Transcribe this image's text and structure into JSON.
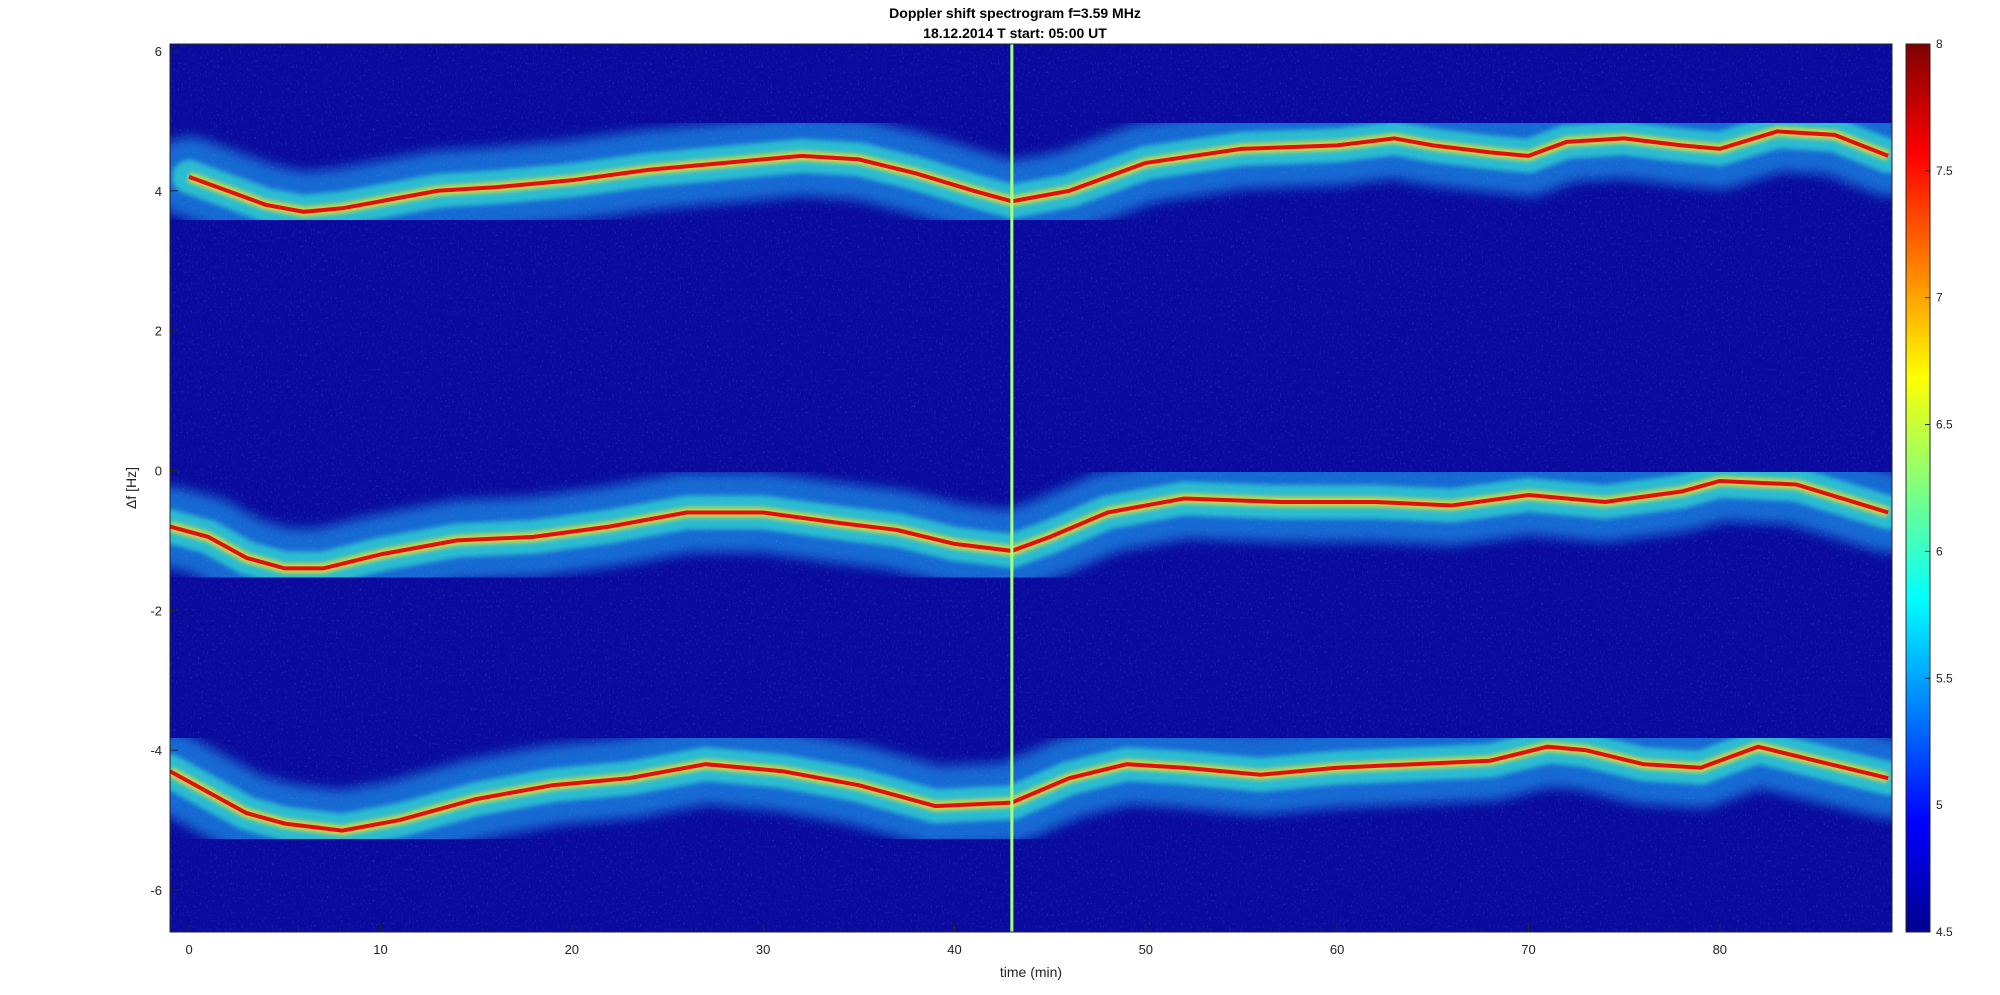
{
  "chart_data": {
    "type": "heatmap",
    "title": "Doppler shift spectrogram f=3.59 MHz",
    "subtitle": "18.12.2014   T start: 05:00 UT",
    "xlabel": "time (min)",
    "ylabel": "Δf [Hz]",
    "xlim": [
      -1,
      89
    ],
    "ylim": [
      -6.6,
      6.1
    ],
    "x_ticks": [
      0,
      10,
      20,
      30,
      40,
      50,
      60,
      70,
      80
    ],
    "y_ticks": [
      -6,
      -4,
      -2,
      0,
      2,
      4,
      6
    ],
    "colorbar": {
      "range": [
        4.5,
        8
      ],
      "ticks": [
        4.5,
        5,
        5.5,
        6,
        6.5,
        7,
        7.5,
        8
      ],
      "colormap": "jet"
    },
    "background_color": "#0a0a9c",
    "traces": [
      {
        "x": [
          0,
          2,
          4,
          6,
          8,
          10,
          13,
          16,
          20,
          24,
          28,
          32,
          35,
          38,
          41,
          43,
          46,
          50,
          55,
          60,
          63,
          65,
          68,
          70,
          72,
          75,
          78,
          80,
          83,
          86,
          88.8
        ],
        "y": [
          4.2,
          4.0,
          3.8,
          3.7,
          3.75,
          3.85,
          4.0,
          4.05,
          4.15,
          4.3,
          4.4,
          4.5,
          4.45,
          4.25,
          4.0,
          3.85,
          4.0,
          4.4,
          4.6,
          4.65,
          4.75,
          4.65,
          4.55,
          4.5,
          4.7,
          4.75,
          4.65,
          4.6,
          4.85,
          4.8,
          4.5
        ]
      },
      {
        "x": [
          -1,
          1,
          3,
          5,
          7,
          10,
          14,
          18,
          22,
          26,
          30,
          34,
          37,
          40,
          43,
          45,
          48,
          52,
          57,
          62,
          66,
          70,
          74,
          78,
          80,
          84,
          88.8
        ],
        "y": [
          -0.8,
          -0.95,
          -1.25,
          -1.4,
          -1.4,
          -1.2,
          -1.0,
          -0.95,
          -0.8,
          -0.6,
          -0.6,
          -0.75,
          -0.85,
          -1.05,
          -1.15,
          -0.95,
          -0.6,
          -0.4,
          -0.45,
          -0.45,
          -0.5,
          -0.35,
          -0.45,
          -0.3,
          -0.15,
          -0.2,
          -0.6
        ]
      },
      {
        "x": [
          -1,
          1,
          3,
          5,
          8,
          11,
          15,
          19,
          23,
          27,
          31,
          35,
          39,
          43,
          46,
          49,
          52,
          56,
          60,
          64,
          68,
          71,
          73,
          76,
          79,
          82,
          85,
          88.8
        ],
        "y": [
          -4.3,
          -4.6,
          -4.9,
          -5.05,
          -5.15,
          -5.0,
          -4.7,
          -4.5,
          -4.4,
          -4.2,
          -4.3,
          -4.5,
          -4.8,
          -4.75,
          -4.4,
          -4.2,
          -4.25,
          -4.35,
          -4.25,
          -4.2,
          -4.15,
          -3.95,
          -4.0,
          -4.2,
          -4.25,
          -3.95,
          -4.15,
          -4.4
        ]
      }
    ],
    "vertical_line": {
      "x": 43,
      "color": "#a8ff7a"
    }
  }
}
